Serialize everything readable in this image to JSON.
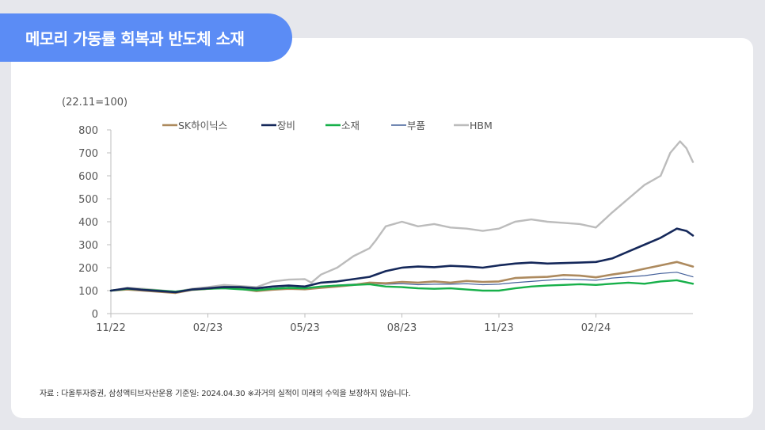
{
  "header": {
    "title": "메모리 가동률 회복과 반도체 소재"
  },
  "source_note": "자료 : 다올투자증권, 삼성액티브자산운용  기준일: 2024.04.30 ※과거의 실적이 미래의 수익을 보장하지 않습니다.",
  "chart_data": {
    "type": "line",
    "unit_label": "(22.11=100)",
    "ylim": [
      0,
      800
    ],
    "yticks": [
      0,
      100,
      200,
      300,
      400,
      500,
      600,
      700,
      800
    ],
    "xlim": [
      0,
      18
    ],
    "xticks": [
      {
        "x": 0,
        "label": "11/22"
      },
      {
        "x": 3,
        "label": "02/23"
      },
      {
        "x": 6,
        "label": "05/23"
      },
      {
        "x": 9,
        "label": "08/23"
      },
      {
        "x": 12,
        "label": "11/23"
      },
      {
        "x": 15,
        "label": "02/24"
      }
    ],
    "grid": false,
    "legend_position": "top",
    "series": [
      {
        "name": "SK하이닉스",
        "color": "#ad8a5e",
        "width": 2.6,
        "points": [
          [
            0,
            100
          ],
          [
            0.5,
            105
          ],
          [
            1,
            100
          ],
          [
            1.5,
            95
          ],
          [
            2,
            90
          ],
          [
            2.5,
            103
          ],
          [
            3,
            108
          ],
          [
            3.5,
            112
          ],
          [
            4,
            108
          ],
          [
            4.5,
            98
          ],
          [
            5,
            104
          ],
          [
            5.5,
            108
          ],
          [
            6,
            106
          ],
          [
            6.5,
            112
          ],
          [
            7,
            118
          ],
          [
            7.5,
            125
          ],
          [
            8,
            135
          ],
          [
            8.5,
            132
          ],
          [
            9,
            138
          ],
          [
            9.5,
            135
          ],
          [
            10,
            140
          ],
          [
            10.5,
            135
          ],
          [
            11,
            142
          ],
          [
            11.5,
            138
          ],
          [
            12,
            140
          ],
          [
            12.5,
            155
          ],
          [
            13,
            158
          ],
          [
            13.5,
            160
          ],
          [
            14,
            168
          ],
          [
            14.5,
            165
          ],
          [
            15,
            158
          ],
          [
            15.5,
            170
          ],
          [
            16,
            180
          ],
          [
            16.5,
            195
          ],
          [
            17,
            210
          ],
          [
            17.5,
            225
          ],
          [
            18,
            205
          ]
        ]
      },
      {
        "name": "장비",
        "color": "#15285a",
        "width": 2.6,
        "points": [
          [
            0,
            100
          ],
          [
            0.5,
            110
          ],
          [
            1,
            103
          ],
          [
            1.5,
            98
          ],
          [
            2,
            93
          ],
          [
            2.5,
            105
          ],
          [
            3,
            110
          ],
          [
            3.5,
            116
          ],
          [
            4,
            115
          ],
          [
            4.5,
            110
          ],
          [
            5,
            118
          ],
          [
            5.5,
            122
          ],
          [
            6,
            118
          ],
          [
            6.5,
            135
          ],
          [
            7,
            140
          ],
          [
            7.5,
            150
          ],
          [
            8,
            160
          ],
          [
            8.5,
            185
          ],
          [
            9,
            200
          ],
          [
            9.5,
            205
          ],
          [
            10,
            202
          ],
          [
            10.5,
            208
          ],
          [
            11,
            205
          ],
          [
            11.5,
            200
          ],
          [
            12,
            210
          ],
          [
            12.5,
            218
          ],
          [
            13,
            222
          ],
          [
            13.5,
            218
          ],
          [
            14,
            220
          ],
          [
            14.5,
            222
          ],
          [
            15,
            225
          ],
          [
            15.5,
            240
          ],
          [
            16,
            270
          ],
          [
            16.5,
            300
          ],
          [
            17,
            330
          ],
          [
            17.5,
            370
          ],
          [
            17.8,
            360
          ],
          [
            18,
            340
          ]
        ]
      },
      {
        "name": "소재",
        "color": "#17b04a",
        "width": 2.4,
        "points": [
          [
            0,
            100
          ],
          [
            0.5,
            108
          ],
          [
            1,
            104
          ],
          [
            1.5,
            100
          ],
          [
            2,
            96
          ],
          [
            2.5,
            104
          ],
          [
            3,
            108
          ],
          [
            3.5,
            110
          ],
          [
            4,
            106
          ],
          [
            4.5,
            102
          ],
          [
            5,
            108
          ],
          [
            5.5,
            112
          ],
          [
            6,
            110
          ],
          [
            6.5,
            118
          ],
          [
            7,
            122
          ],
          [
            7.5,
            125
          ],
          [
            8,
            128
          ],
          [
            8.5,
            118
          ],
          [
            9,
            115
          ],
          [
            9.5,
            110
          ],
          [
            10,
            108
          ],
          [
            10.5,
            110
          ],
          [
            11,
            105
          ],
          [
            11.5,
            100
          ],
          [
            12,
            100
          ],
          [
            12.5,
            110
          ],
          [
            13,
            118
          ],
          [
            13.5,
            122
          ],
          [
            14,
            125
          ],
          [
            14.5,
            128
          ],
          [
            15,
            125
          ],
          [
            15.5,
            130
          ],
          [
            16,
            135
          ],
          [
            16.5,
            130
          ],
          [
            17,
            140
          ],
          [
            17.5,
            145
          ],
          [
            18,
            130
          ]
        ]
      },
      {
        "name": "부품",
        "color": "#44609a",
        "width": 1.2,
        "points": [
          [
            0,
            100
          ],
          [
            0.5,
            106
          ],
          [
            1,
            102
          ],
          [
            1.5,
            98
          ],
          [
            2,
            94
          ],
          [
            2.5,
            102
          ],
          [
            3,
            106
          ],
          [
            3.5,
            110
          ],
          [
            4,
            108
          ],
          [
            4.5,
            104
          ],
          [
            5,
            110
          ],
          [
            5.5,
            114
          ],
          [
            6,
            112
          ],
          [
            6.5,
            118
          ],
          [
            7,
            124
          ],
          [
            7.5,
            128
          ],
          [
            8,
            132
          ],
          [
            8.5,
            128
          ],
          [
            9,
            130
          ],
          [
            9.5,
            126
          ],
          [
            10,
            128
          ],
          [
            10.5,
            128
          ],
          [
            11,
            130
          ],
          [
            11.5,
            126
          ],
          [
            12,
            128
          ],
          [
            12.5,
            135
          ],
          [
            13,
            140
          ],
          [
            13.5,
            145
          ],
          [
            14,
            150
          ],
          [
            14.5,
            148
          ],
          [
            15,
            145
          ],
          [
            15.5,
            155
          ],
          [
            16,
            160
          ],
          [
            16.5,
            165
          ],
          [
            17,
            175
          ],
          [
            17.5,
            180
          ],
          [
            18,
            160
          ]
        ]
      },
      {
        "name": "HBM",
        "color": "#bcbcbc",
        "width": 2.4,
        "points": [
          [
            0,
            100
          ],
          [
            0.5,
            112
          ],
          [
            1,
            108
          ],
          [
            1.5,
            102
          ],
          [
            2,
            95
          ],
          [
            2.5,
            108
          ],
          [
            3,
            115
          ],
          [
            3.5,
            125
          ],
          [
            4,
            120
          ],
          [
            4.5,
            115
          ],
          [
            5,
            140
          ],
          [
            5.5,
            148
          ],
          [
            6,
            150
          ],
          [
            6.2,
            135
          ],
          [
            6.5,
            170
          ],
          [
            7,
            200
          ],
          [
            7.5,
            250
          ],
          [
            8,
            285
          ],
          [
            8.2,
            320
          ],
          [
            8.5,
            380
          ],
          [
            9,
            400
          ],
          [
            9.5,
            380
          ],
          [
            10,
            390
          ],
          [
            10.5,
            375
          ],
          [
            11,
            370
          ],
          [
            11.5,
            360
          ],
          [
            12,
            370
          ],
          [
            12.5,
            400
          ],
          [
            13,
            410
          ],
          [
            13.5,
            400
          ],
          [
            14,
            395
          ],
          [
            14.5,
            390
          ],
          [
            15,
            375
          ],
          [
            15.5,
            440
          ],
          [
            16,
            500
          ],
          [
            16.5,
            560
          ],
          [
            17,
            600
          ],
          [
            17.3,
            700
          ],
          [
            17.6,
            750
          ],
          [
            17.8,
            720
          ],
          [
            18,
            660
          ]
        ]
      }
    ]
  }
}
